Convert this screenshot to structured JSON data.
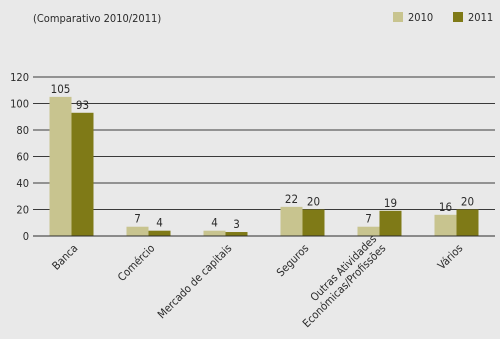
{
  "chart_data": {
    "type": "bar",
    "subtitle": "(Comparativo 2010/2011)",
    "categories": [
      "Banca",
      "Comércio",
      "Mercado de capitais",
      "Seguros",
      "Outras Atividades Económicas/Profissões",
      "Vários"
    ],
    "category_lines": [
      [
        "Banca"
      ],
      [
        "Comércio"
      ],
      [
        "Mercado de capitais"
      ],
      [
        "Seguros"
      ],
      [
        "Outras Atividades",
        "Económicas/Profissões"
      ],
      [
        "Vários"
      ]
    ],
    "series": [
      {
        "name": "2010",
        "values": [
          105,
          7,
          4,
          22,
          7,
          16
        ],
        "color": "#c8c48f"
      },
      {
        "name": "2011",
        "values": [
          93,
          4,
          3,
          20,
          19,
          20
        ],
        "color": "#7f7a17"
      }
    ],
    "ylim": [
      0,
      120
    ],
    "yticks": [
      0,
      20,
      40,
      60,
      80,
      100,
      120
    ],
    "grid": true,
    "legend": "top-right"
  }
}
